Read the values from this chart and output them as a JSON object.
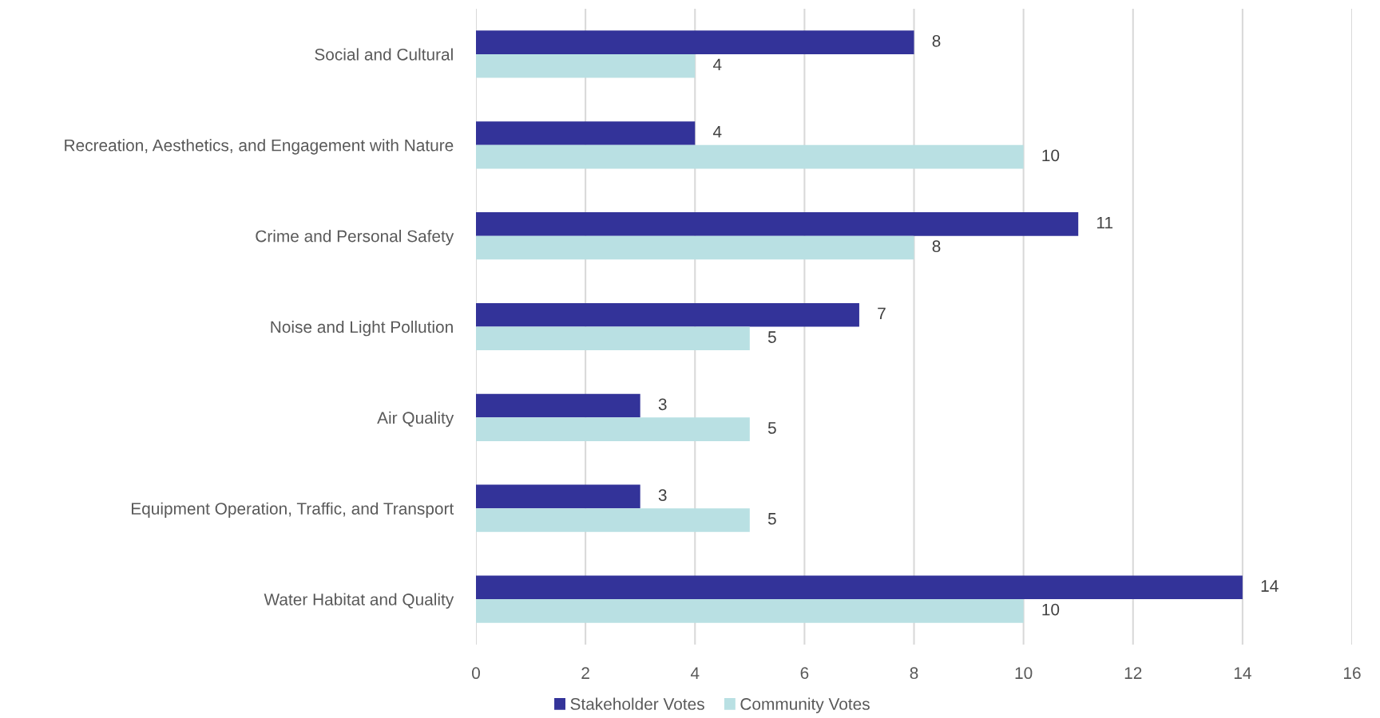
{
  "chart_data": {
    "type": "bar",
    "orientation": "horizontal",
    "categories": [
      "Social and Cultural",
      "Recreation, Aesthetics, and Engagement with Nature",
      "Crime and Personal Safety",
      "Noise and Light Pollution",
      "Air Quality",
      "Equipment Operation, Traffic, and Transport",
      "Water Habitat and Quality"
    ],
    "series": [
      {
        "name": "Stakeholder Votes",
        "color": "#333399",
        "values": [
          8,
          4,
          11,
          7,
          3,
          3,
          14
        ]
      },
      {
        "name": "Community Votes",
        "color": "#b9e0e3",
        "values": [
          4,
          10,
          8,
          5,
          5,
          5,
          10
        ]
      }
    ],
    "xlim": [
      0,
      16
    ],
    "xticks": [
      0,
      2,
      4,
      6,
      8,
      10,
      12,
      14,
      16
    ],
    "grid": "x",
    "legend": "bottom",
    "data_labels": true
  }
}
